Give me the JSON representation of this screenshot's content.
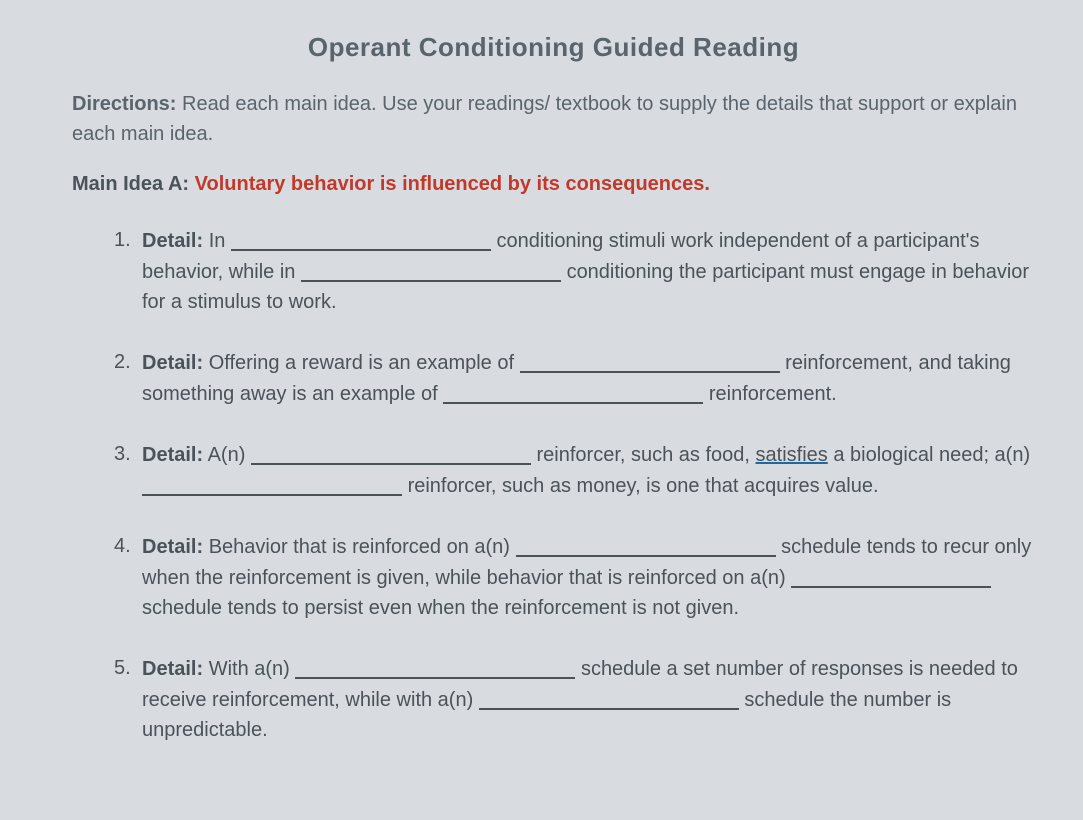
{
  "title": "Operant Conditioning Guided Reading",
  "directions": {
    "label": "Directions:",
    "text": "Read each main idea. Use your readings/ textbook to supply the details that support or explain each main idea."
  },
  "mainIdea": {
    "label": "Main Idea A:",
    "text": "Voluntary behavior is influenced by its consequences."
  },
  "details": [
    {
      "num": "1",
      "label": "Detail:",
      "p1": "In",
      "p2": "conditioning stimuli work independent of a participant's behavior, while in",
      "p3": "conditioning the participant must engage in behavior for a stimulus to work."
    },
    {
      "num": "2",
      "label": "Detail:",
      "p1": "Offering a reward is an example of",
      "p2": "reinforcement, and taking something away is an example of",
      "p3": "reinforcement."
    },
    {
      "num": "3",
      "label": "Detail:",
      "p1": "A(n)",
      "p2a": "reinforcer, such as food,",
      "p2b": "satisfies",
      "p2c": "a biological need; a(n)",
      "p3": "reinforcer, such as money, is one that acquires value."
    },
    {
      "num": "4",
      "label": "Detail:",
      "p1": "Behavior that is reinforced on a(n)",
      "p2": "schedule tends to recur only when the reinforcement is given, while behavior that is reinforced on a(n)",
      "p3": "schedule tends to persist even when the reinforcement is not given."
    },
    {
      "num": "5",
      "label": "Detail:",
      "p1": "With a(n)",
      "p2": "schedule a set number of responses is needed to receive reinforcement, while with a(n)",
      "p3": "schedule the number is unpredictable."
    }
  ]
}
